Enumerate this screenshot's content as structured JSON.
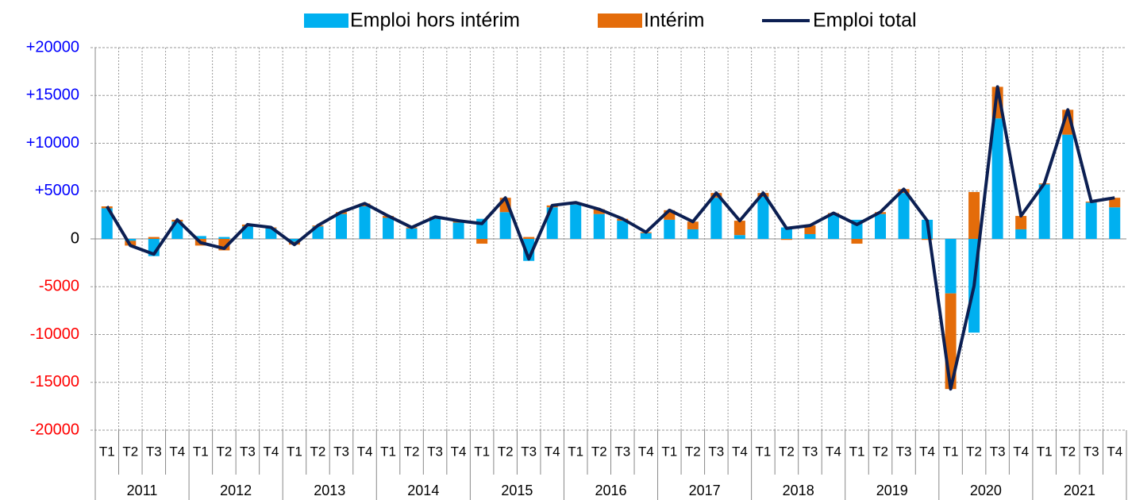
{
  "chart_data": {
    "type": "stacked_bar_line",
    "categories": [
      "T1",
      "T2",
      "T3",
      "T4",
      "T1",
      "T2",
      "T3",
      "T4",
      "T1",
      "T2",
      "T3",
      "T4",
      "T1",
      "T2",
      "T3",
      "T4",
      "T1",
      "T2",
      "T3",
      "T4",
      "T1",
      "T2",
      "T3",
      "T4",
      "T1",
      "T2",
      "T3",
      "T4",
      "T1",
      "T2",
      "T3",
      "T4",
      "T1",
      "T2",
      "T3",
      "T4",
      "T1",
      "T2",
      "T3",
      "T4",
      "T1",
      "T2",
      "T3",
      "T4"
    ],
    "years": [
      "2011",
      "2012",
      "2013",
      "2014",
      "2015",
      "2016",
      "2017",
      "2018",
      "2019",
      "2020",
      "2021"
    ],
    "series": [
      {
        "name": "Emploi hors intérim",
        "color": "#00b0f0",
        "kind": "bar",
        "values": [
          3200,
          -200,
          -1800,
          1800,
          300,
          200,
          1300,
          1100,
          -300,
          1300,
          2600,
          3400,
          2200,
          1100,
          2100,
          1700,
          2100,
          2800,
          -2300,
          3300,
          3600,
          2600,
          1900,
          600,
          2000,
          1000,
          4300,
          400,
          4400,
          1200,
          500,
          2500,
          2000,
          2600,
          4800,
          2000,
          -5700,
          -9800,
          12600,
          1000,
          5700,
          10900,
          3800,
          3300
        ]
      },
      {
        "name": "Intérim",
        "color": "#e46c0a",
        "kind": "bar",
        "values": [
          200,
          -500,
          200,
          200,
          -700,
          -1200,
          200,
          100,
          -300,
          100,
          200,
          300,
          200,
          100,
          200,
          200,
          -500,
          1500,
          200,
          200,
          200,
          500,
          200,
          100,
          1000,
          800,
          500,
          1500,
          400,
          -100,
          900,
          200,
          -500,
          200,
          400,
          -100,
          -10000,
          4900,
          3300,
          1400,
          100,
          2600,
          100,
          1000
        ]
      },
      {
        "name": "Emploi total",
        "color": "#0c1f52",
        "kind": "line",
        "values": [
          3400,
          -700,
          -1600,
          2000,
          -400,
          -1000,
          1500,
          1200,
          -600,
          1400,
          2800,
          3700,
          2400,
          1200,
          2300,
          1900,
          1600,
          4300,
          -2100,
          3500,
          3800,
          3100,
          2100,
          700,
          3000,
          1800,
          4800,
          1900,
          4800,
          1100,
          1400,
          2700,
          1500,
          2800,
          5200,
          1900,
          -15700,
          -4900,
          15900,
          2400,
          5800,
          13500,
          3900,
          4300
        ]
      }
    ],
    "ylim": [
      -20000,
      20000
    ],
    "yticks": [
      {
        "value": 20000,
        "label": "+20000"
      },
      {
        "value": 15000,
        "label": "+15000"
      },
      {
        "value": 10000,
        "label": "+10000"
      },
      {
        "value": 5000,
        "label": "+5000"
      },
      0,
      -5000,
      -10000,
      -15000,
      -20000
    ],
    "grid": true,
    "legend": "top"
  }
}
